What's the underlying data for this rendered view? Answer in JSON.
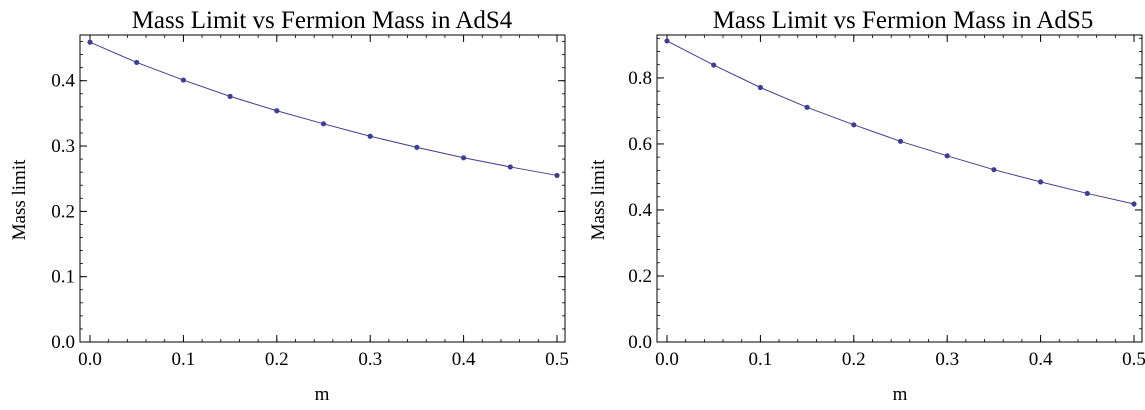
{
  "chart_data": [
    {
      "type": "line",
      "title": "Mass Limit vs Fermion Mass in AdS4",
      "xlabel": "m",
      "ylabel": "Mass limit",
      "xlim": [
        0.0,
        0.5
      ],
      "ylim": [
        0.0,
        0.47
      ],
      "x_ticks": [
        "0.0",
        "0.1",
        "0.2",
        "0.3",
        "0.4",
        "0.5"
      ],
      "y_ticks": [
        "0.0",
        "0.1",
        "0.2",
        "0.3",
        "0.4"
      ],
      "x_tick_values": [
        0.0,
        0.1,
        0.2,
        0.3,
        0.4,
        0.5
      ],
      "y_tick_values": [
        0.0,
        0.1,
        0.2,
        0.3,
        0.4
      ],
      "grid": false,
      "markers": true,
      "color": "#3f3f8f",
      "series": [
        {
          "x": [
            0.0,
            0.05,
            0.1,
            0.15,
            0.2,
            0.25,
            0.3,
            0.35,
            0.4,
            0.45,
            0.5
          ],
          "values": [
            0.459,
            0.428,
            0.401,
            0.376,
            0.354,
            0.334,
            0.315,
            0.298,
            0.282,
            0.268,
            0.255
          ]
        }
      ]
    },
    {
      "type": "line",
      "title": "Mass Limit vs Fermion Mass in AdS5",
      "xlabel": "m",
      "ylabel": "Mass limit",
      "xlim": [
        0.0,
        0.5
      ],
      "ylim": [
        0.0,
        0.93
      ],
      "x_ticks": [
        "0.0",
        "0.1",
        "0.2",
        "0.3",
        "0.4",
        "0.5"
      ],
      "y_ticks": [
        "0.0",
        "0.2",
        "0.4",
        "0.6",
        "0.8"
      ],
      "x_tick_values": [
        0.0,
        0.1,
        0.2,
        0.3,
        0.4,
        0.5
      ],
      "y_tick_values": [
        0.0,
        0.2,
        0.4,
        0.6,
        0.8
      ],
      "grid": false,
      "markers": true,
      "color": "#3f3f8f",
      "series": [
        {
          "x": [
            0.0,
            0.05,
            0.1,
            0.15,
            0.2,
            0.25,
            0.3,
            0.35,
            0.4,
            0.45,
            0.5
          ],
          "values": [
            0.912,
            0.839,
            0.771,
            0.711,
            0.658,
            0.608,
            0.564,
            0.522,
            0.485,
            0.45,
            0.418
          ]
        }
      ]
    }
  ]
}
